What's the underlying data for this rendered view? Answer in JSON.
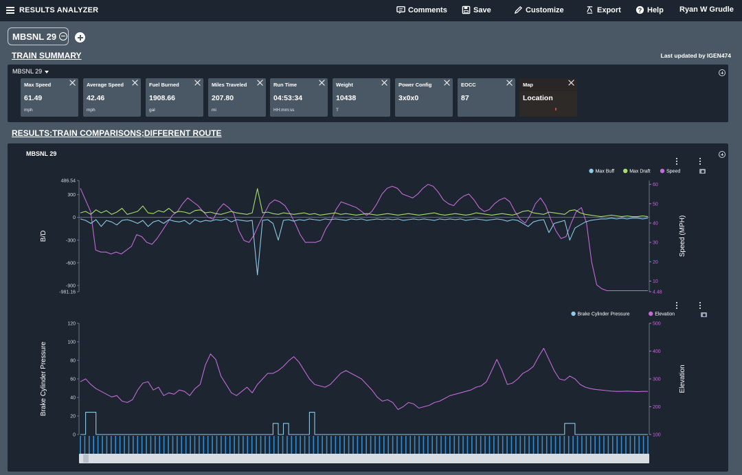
{
  "app": {
    "title": "RESULTS ANALYZER"
  },
  "toolbar": {
    "comments_label": "Comments",
    "save_label": "Save",
    "customize_label": "Customize",
    "export_label": "Export",
    "help_label": "Help",
    "user_name": "Ryan W Grudle"
  },
  "tabs": [
    {
      "label": "MBSNL 29"
    }
  ],
  "summary": {
    "section_title": "TRAIN SUMMARY",
    "last_updated": "Last updated by IGEN474",
    "train_name": "MBSNL 29",
    "cards": [
      {
        "title": "Max Speed",
        "value": "61.49",
        "unit": "mph"
      },
      {
        "title": "Average Speed",
        "value": "42.46",
        "unit": "mph"
      },
      {
        "title": "Fuel Burned",
        "value": "1908.66",
        "unit": "gal"
      },
      {
        "title": "Miles Traveled",
        "value": "207.80",
        "unit": "mi"
      },
      {
        "title": "Run Time",
        "value": "04:53:34",
        "unit": "HH:mm:ss"
      },
      {
        "title": "Weight",
        "value": "10438",
        "unit": "T"
      },
      {
        "title": "Power Config",
        "value": "3x0x0",
        "unit": ""
      },
      {
        "title": "EOCC",
        "value": "87",
        "unit": ""
      },
      {
        "title": "Map",
        "value": "Location",
        "unit": ""
      }
    ]
  },
  "results": {
    "section_title": "RESULTS:TRAIN COMPARISONS;DIFFERENT ROUTE",
    "panel_title": "MBSNL 29"
  },
  "colors": {
    "max_buff": "#8ecae6",
    "max_draft": "#a8e06a",
    "speed": "#c36bd6",
    "brake": "#8ecae6",
    "elevation": "#c36bd6",
    "panel_bg": "#1c2530",
    "page_bg": "#4a5866"
  },
  "chart_data": [
    {
      "type": "line",
      "ylabel": "B/D",
      "y2label": "Speed (MPH)",
      "ylim": [
        -981.16,
        486.54
      ],
      "y2lim": [
        4.48,
        62
      ],
      "yticks": [
        "486.54",
        "300",
        "0",
        "-300",
        "-600",
        "-900",
        "-981.16"
      ],
      "y2ticks": [
        "60",
        "50",
        "40",
        "30",
        "20",
        "10",
        "4.48"
      ],
      "legend": [
        "Max Buff",
        "Max Draft",
        "Speed"
      ],
      "legend_position": "top-right",
      "series": [
        {
          "name": "Speed",
          "axis": "right",
          "values": [
            58,
            52,
            46,
            26,
            25,
            25,
            24,
            25,
            24,
            26,
            28,
            34,
            33,
            30,
            29,
            32,
            36,
            40,
            44,
            46,
            50,
            53,
            51,
            49,
            46,
            43,
            42,
            47,
            50,
            48,
            45,
            36,
            31,
            30,
            34,
            40,
            45,
            50,
            52,
            51,
            49,
            45,
            40,
            34,
            30,
            30,
            30,
            31,
            37,
            41,
            47,
            51,
            50,
            49,
            48,
            46,
            44,
            46,
            50,
            55,
            58,
            59,
            58,
            55,
            54,
            53,
            55,
            58,
            60,
            59,
            56,
            52,
            50,
            49,
            52,
            54,
            55,
            52,
            48,
            46,
            47,
            50,
            52,
            53,
            51,
            46,
            42,
            40,
            44,
            50,
            53,
            49,
            42,
            36,
            32,
            33,
            40,
            46,
            48,
            40,
            20,
            8,
            6,
            5,
            5,
            5,
            5,
            5,
            5,
            5,
            5,
            5
          ]
        },
        {
          "name": "Max Draft",
          "axis": "left",
          "values": [
            60,
            80,
            40,
            100,
            60,
            90,
            40,
            70,
            120,
            40,
            60,
            80,
            150,
            60,
            50,
            90,
            70,
            120,
            60,
            80,
            70,
            50,
            90,
            100,
            60,
            70,
            50,
            40,
            60,
            80,
            60,
            50,
            40,
            60,
            380,
            60,
            70,
            50,
            40,
            60,
            50,
            40,
            50,
            60,
            40,
            50,
            30,
            40,
            50,
            60,
            40,
            50,
            40,
            30,
            40,
            50,
            40,
            30,
            40,
            50,
            40,
            30,
            40,
            50,
            40,
            30,
            40,
            50,
            60,
            40,
            30,
            40,
            50,
            40,
            30,
            40,
            60,
            50,
            40,
            30,
            40,
            50,
            40,
            30,
            50,
            80,
            90,
            60,
            50,
            40,
            70,
            60,
            50,
            40,
            90,
            100,
            60,
            40,
            30,
            20,
            10,
            20,
            30,
            20,
            10,
            20,
            10,
            10,
            20,
            10
          ]
        },
        {
          "name": "Max Buff",
          "axis": "left",
          "values": [
            -20,
            -40,
            -80,
            -30,
            -120,
            -40,
            -60,
            -100,
            -40,
            -30,
            -50,
            -80,
            -40,
            -120,
            -60,
            -40,
            -80,
            -30,
            -50,
            -60,
            -40,
            -90,
            -30,
            -60,
            -40,
            -50,
            -30,
            -40,
            -20,
            -60,
            -30,
            -40,
            -50,
            -40,
            -760,
            -40,
            -30,
            -80,
            -300,
            -40,
            -30,
            -50,
            -30,
            -40,
            -20,
            -30,
            -40,
            -20,
            -30,
            -20,
            -30,
            -40,
            -20,
            -30,
            -20,
            -40,
            -30,
            -20,
            -30,
            -20,
            -30,
            -20,
            -40,
            -30,
            -20,
            -30,
            -20,
            -30,
            -40,
            -20,
            -30,
            -20,
            -30,
            -20,
            -40,
            -30,
            -20,
            -30,
            -40,
            -30,
            -20,
            -30,
            -50,
            -30,
            -40,
            -80,
            -120,
            -60,
            -40,
            -30,
            -200,
            -80,
            -60,
            -40,
            -300,
            -140,
            -100,
            -60,
            -40,
            -30,
            -20,
            -20,
            -10,
            -20,
            -10,
            -20,
            -10,
            -10,
            -20,
            -10
          ]
        }
      ]
    },
    {
      "type": "line",
      "ylabel": "Brake Cylinder Pressure",
      "y2label": "Elevation",
      "ylim": [
        0,
        120
      ],
      "y2lim": [
        100,
        500
      ],
      "yticks": [
        "120",
        "100",
        "80",
        "60",
        "40",
        "20",
        "0"
      ],
      "y2ticks": [
        "500",
        "400",
        "300",
        "200",
        "100"
      ],
      "legend": [
        "Brake Cylinder Pressure",
        "Elevation"
      ],
      "legend_position": "top-right",
      "series": [
        {
          "name": "Elevation",
          "axis": "right",
          "values": [
            290,
            300,
            280,
            265,
            255,
            245,
            235,
            240,
            220,
            215,
            225,
            260,
            285,
            290,
            260,
            270,
            240,
            250,
            245,
            260,
            255,
            240,
            265,
            280,
            350,
            390,
            370,
            310,
            280,
            250,
            240,
            255,
            270,
            250,
            280,
            300,
            320,
            320,
            330,
            345,
            365,
            380,
            360,
            330,
            300,
            280,
            275,
            270,
            280,
            300,
            320,
            330,
            320,
            310,
            300,
            280,
            260,
            235,
            220,
            225,
            215,
            190,
            200,
            215,
            210,
            195,
            200,
            205,
            215,
            220,
            230,
            240,
            245,
            250,
            255,
            260,
            270,
            275,
            290,
            330,
            370,
            330,
            280,
            285,
            300,
            320,
            330,
            345,
            380,
            410,
            370,
            330,
            300,
            295,
            310,
            300,
            280,
            270,
            265,
            262,
            260,
            258,
            256,
            255,
            255,
            256,
            255,
            254,
            255,
            255
          ]
        },
        {
          "name": "Brake Cylinder Pressure",
          "axis": "left",
          "values": [
            0,
            0,
            24,
            24,
            0,
            0,
            0,
            0,
            0,
            0,
            0,
            0,
            0,
            0,
            0,
            0,
            0,
            0,
            0,
            0,
            0,
            0,
            0,
            0,
            0,
            0,
            0,
            0,
            0,
            0,
            0,
            0,
            0,
            0,
            0,
            0,
            0,
            0,
            12,
            0,
            12,
            0,
            0,
            0,
            0,
            24,
            0,
            0,
            0,
            0,
            0,
            0,
            0,
            0,
            0,
            0,
            0,
            0,
            0,
            0,
            0,
            0,
            0,
            0,
            0,
            0,
            0,
            0,
            0,
            0,
            0,
            0,
            0,
            0,
            0,
            0,
            0,
            0,
            0,
            0,
            0,
            0,
            0,
            0,
            0,
            0,
            0,
            0,
            0,
            0,
            0,
            0,
            0,
            0,
            12,
            12,
            0,
            0,
            0,
            0,
            0,
            0,
            0,
            0,
            0,
            0,
            0,
            0,
            0,
            0
          ]
        }
      ]
    }
  ]
}
